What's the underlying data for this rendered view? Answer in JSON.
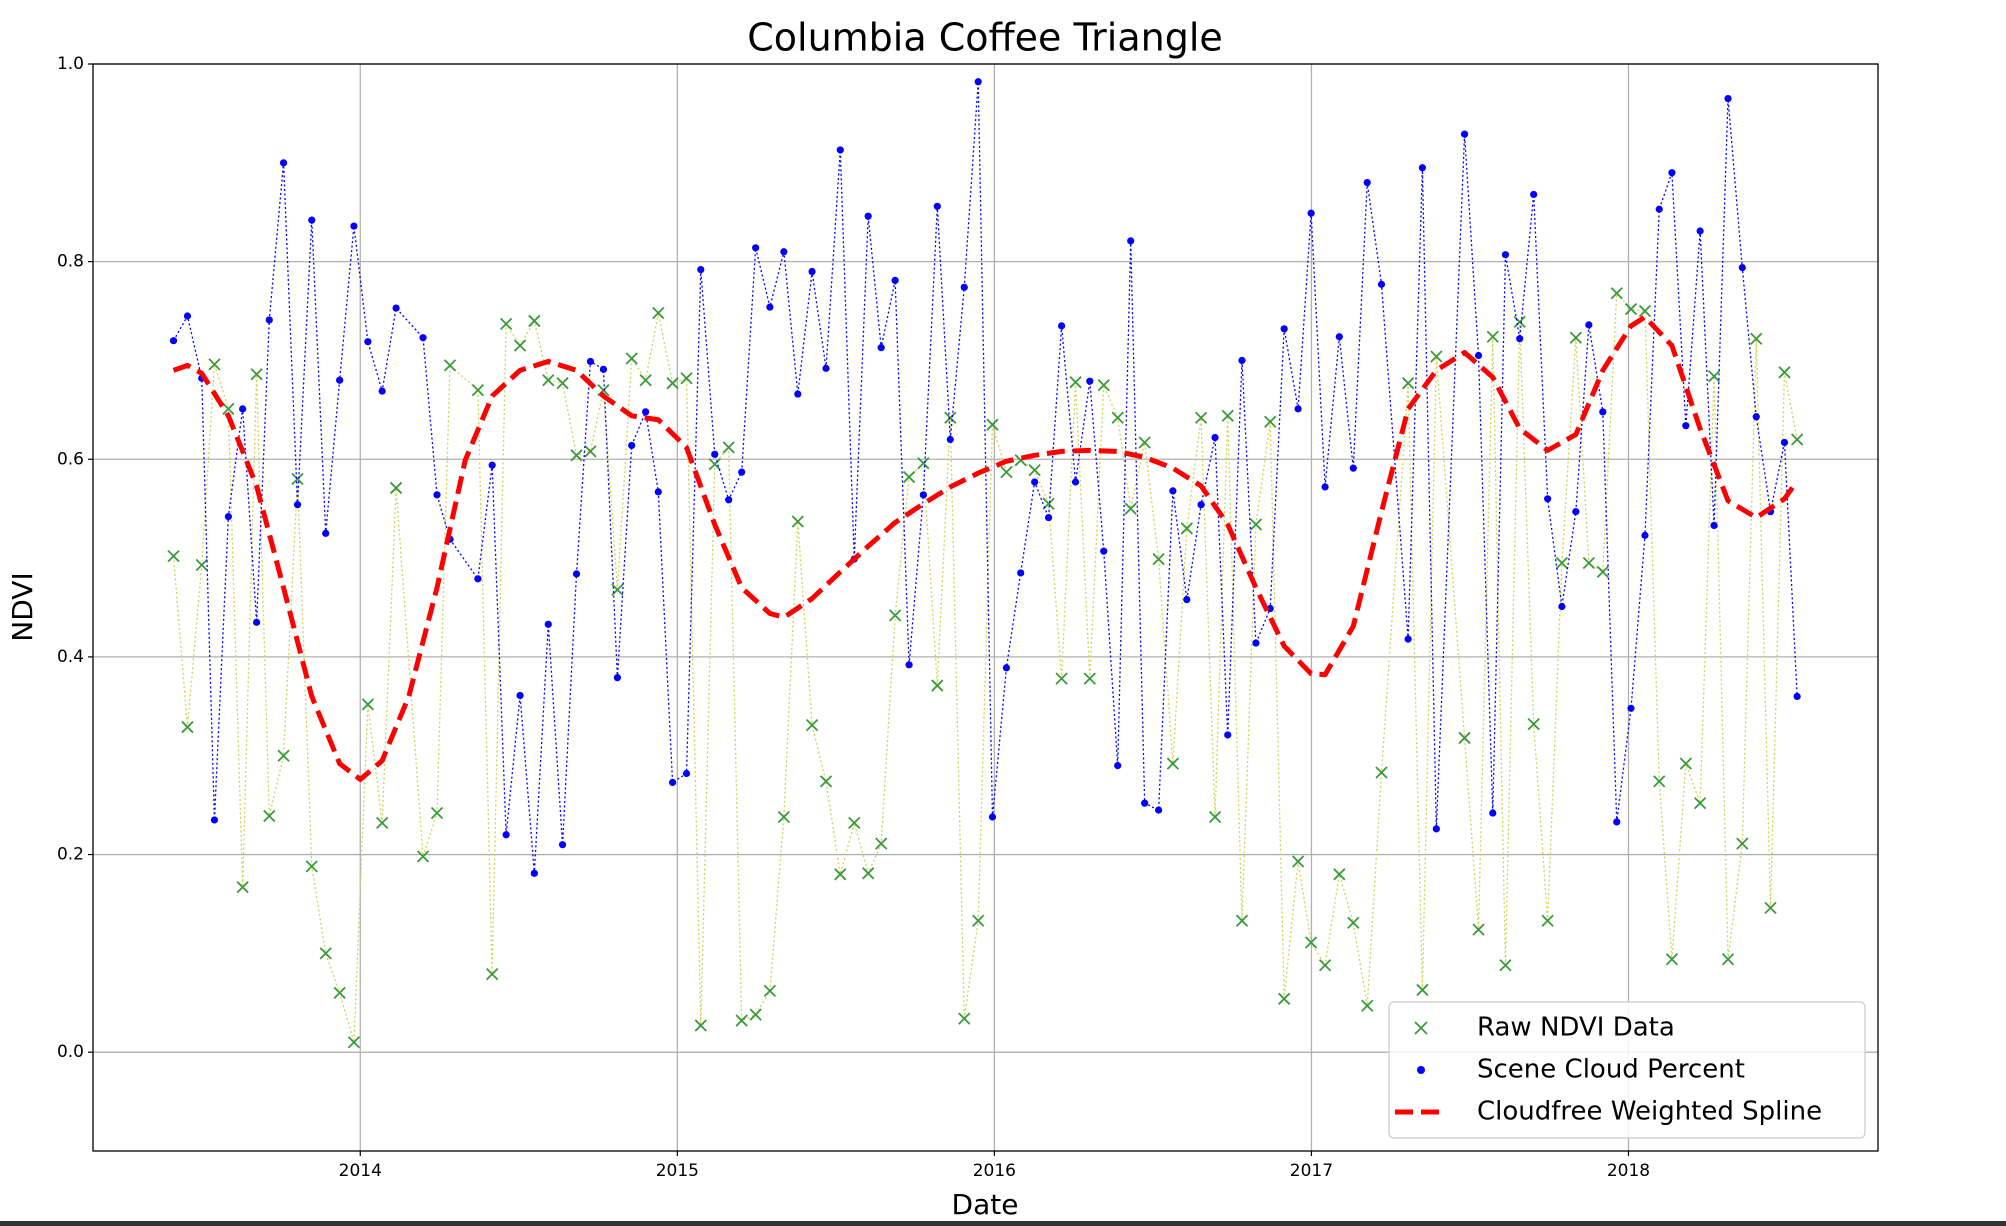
{
  "chart_data": {
    "type": "line",
    "title": "Columbia Coffee Triangle",
    "x_label": "Date",
    "y_label": "NDVI",
    "xlim": [
      2013.157,
      2018.787
    ],
    "ylim": [
      -0.1,
      1.0
    ],
    "xticks": [
      2014,
      2015,
      2016,
      2017,
      2018
    ],
    "yticks": [
      {
        "value": 0,
        "label": "0.0"
      },
      0.2,
      0.4,
      0.6,
      0.8,
      {
        "value": 1,
        "label": "1.0"
      }
    ],
    "grid": true,
    "legend": "lower right",
    "series": [
      {
        "name": "Raw NDVI Data",
        "color": "#3a9a3a",
        "line_color": "#d2d25a",
        "marker": "x",
        "x": [
          2013.411,
          2013.455,
          2013.5,
          2013.54,
          2013.584,
          2013.629,
          2013.673,
          2013.713,
          2013.758,
          2013.802,
          2013.847,
          2013.891,
          2013.935,
          2013.98,
          2014.024,
          2014.069,
          2014.113,
          2014.198,
          2014.242,
          2014.283,
          2014.371,
          2014.416,
          2014.46,
          2014.504,
          2014.549,
          2014.593,
          2014.638,
          2014.682,
          2014.726,
          2014.767,
          2014.811,
          2014.856,
          2014.9,
          2014.94,
          2014.985,
          2015.029,
          2015.074,
          2015.118,
          2015.162,
          2015.203,
          2015.247,
          2015.292,
          2015.336,
          2015.38,
          2015.425,
          2015.469,
          2015.514,
          2015.558,
          2015.602,
          2015.643,
          2015.687,
          2015.731,
          2015.776,
          2015.82,
          2015.861,
          2015.905,
          2015.949,
          2015.994,
          2016.038,
          2016.083,
          2016.127,
          2016.171,
          2016.212,
          2016.256,
          2016.301,
          2016.345,
          2016.389,
          2016.43,
          2016.474,
          2016.518,
          2016.563,
          2016.607,
          2016.652,
          2016.696,
          2016.736,
          2016.781,
          2016.825,
          2016.87,
          2016.914,
          2016.958,
          2016.999,
          2017.043,
          2017.088,
          2017.132,
          2017.176,
          2017.221,
          2017.305,
          2017.35,
          2017.394,
          2017.483,
          2017.527,
          2017.572,
          2017.612,
          2017.657,
          2017.701,
          2017.745,
          2017.79,
          2017.834,
          2017.875,
          2017.919,
          2017.963,
          2018.008,
          2018.052,
          2018.097,
          2018.137,
          2018.181,
          2018.226,
          2018.27,
          2018.314,
          2018.359,
          2018.403,
          2018.448,
          2018.492,
          2018.532
        ],
        "values": [
          0.502,
          0.329,
          0.493,
          0.696,
          0.651,
          0.167,
          0.686,
          0.239,
          0.3,
          0.58,
          0.188,
          0.1,
          0.06,
          0.01,
          0.352,
          0.232,
          0.571,
          0.198,
          0.242,
          0.695,
          0.67,
          0.079,
          0.737,
          0.715,
          0.74,
          0.68,
          0.677,
          0.604,
          0.608,
          0.67,
          0.468,
          0.702,
          0.68,
          0.748,
          0.677,
          0.682,
          0.027,
          0.595,
          0.612,
          0.032,
          0.038,
          0.062,
          0.238,
          0.537,
          0.331,
          0.274,
          0.18,
          0.232,
          0.181,
          0.211,
          0.442,
          0.582,
          0.596,
          0.371,
          0.642,
          0.034,
          0.133,
          0.635,
          0.587,
          0.599,
          0.589,
          0.555,
          0.378,
          0.678,
          0.378,
          0.675,
          0.642,
          0.55,
          0.617,
          0.499,
          0.292,
          0.53,
          0.642,
          0.238,
          0.644,
          0.133,
          0.534,
          0.638,
          0.054,
          0.193,
          0.111,
          0.088,
          0.18,
          0.131,
          0.047,
          0.283,
          0.677,
          0.063,
          0.704,
          0.318,
          0.124,
          0.724,
          0.088,
          0.739,
          0.332,
          0.133,
          0.495,
          0.723,
          0.495,
          0.486,
          0.768,
          0.752,
          0.75,
          0.274,
          0.094,
          0.292,
          0.252,
          0.684,
          0.094,
          0.211,
          0.722,
          0.146,
          0.688,
          0.62
        ]
      },
      {
        "name": "Scene Cloud Percent",
        "color": "#0000ff",
        "line_color": "#0000ff",
        "marker": "dot",
        "x": [
          2013.411,
          2013.455,
          2013.5,
          2013.54,
          2013.584,
          2013.629,
          2013.673,
          2013.713,
          2013.758,
          2013.802,
          2013.847,
          2013.891,
          2013.935,
          2013.98,
          2014.024,
          2014.069,
          2014.113,
          2014.198,
          2014.242,
          2014.283,
          2014.371,
          2014.416,
          2014.46,
          2014.504,
          2014.549,
          2014.593,
          2014.638,
          2014.682,
          2014.726,
          2014.767,
          2014.811,
          2014.856,
          2014.9,
          2014.94,
          2014.985,
          2015.029,
          2015.074,
          2015.118,
          2015.162,
          2015.203,
          2015.247,
          2015.292,
          2015.336,
          2015.38,
          2015.425,
          2015.469,
          2015.514,
          2015.558,
          2015.602,
          2015.643,
          2015.687,
          2015.731,
          2015.776,
          2015.82,
          2015.861,
          2015.905,
          2015.949,
          2015.994,
          2016.038,
          2016.083,
          2016.127,
          2016.171,
          2016.212,
          2016.256,
          2016.301,
          2016.345,
          2016.389,
          2016.43,
          2016.474,
          2016.518,
          2016.563,
          2016.607,
          2016.652,
          2016.696,
          2016.736,
          2016.781,
          2016.825,
          2016.87,
          2016.914,
          2016.958,
          2016.999,
          2017.043,
          2017.088,
          2017.132,
          2017.176,
          2017.221,
          2017.305,
          2017.35,
          2017.394,
          2017.483,
          2017.527,
          2017.572,
          2017.612,
          2017.657,
          2017.701,
          2017.745,
          2017.79,
          2017.834,
          2017.875,
          2017.919,
          2017.963,
          2018.008,
          2018.052,
          2018.097,
          2018.137,
          2018.181,
          2018.226,
          2018.27,
          2018.314,
          2018.359,
          2018.403,
          2018.448,
          2018.492,
          2018.532
        ],
        "values": [
          0.72,
          0.745,
          0.682,
          0.235,
          0.542,
          0.651,
          0.435,
          0.741,
          0.9,
          0.554,
          0.842,
          0.525,
          0.68,
          0.836,
          0.719,
          0.669,
          0.753,
          0.723,
          0.564,
          0.519,
          0.479,
          0.594,
          0.22,
          0.361,
          0.181,
          0.433,
          0.21,
          0.484,
          0.699,
          0.691,
          0.379,
          0.614,
          0.648,
          0.567,
          0.273,
          0.282,
          0.792,
          0.605,
          0.559,
          0.587,
          0.814,
          0.754,
          0.81,
          0.666,
          0.79,
          0.692,
          0.913,
          0.499,
          0.846,
          0.713,
          0.781,
          0.392,
          0.564,
          0.856,
          0.62,
          0.774,
          0.982,
          0.238,
          0.389,
          0.485,
          0.577,
          0.541,
          0.735,
          0.577,
          0.679,
          0.507,
          0.29,
          0.821,
          0.252,
          0.245,
          0.568,
          0.458,
          0.554,
          0.622,
          0.321,
          0.7,
          0.414,
          0.449,
          0.732,
          0.651,
          0.849,
          0.572,
          0.724,
          0.591,
          0.88,
          0.777,
          0.418,
          0.895,
          0.226,
          0.929,
          0.705,
          0.242,
          0.807,
          0.722,
          0.868,
          0.56,
          0.451,
          0.547,
          0.736,
          0.648,
          0.233,
          0.348,
          0.523,
          0.853,
          0.89,
          0.634,
          0.831,
          0.533,
          0.965,
          0.794,
          0.643,
          0.547,
          0.617,
          0.36
        ]
      },
      {
        "name": "Cloudfree Weighted Spline",
        "color": "#ff0000",
        "line_color": "#ff0000",
        "marker": "none",
        "dashed": true,
        "x": [
          2013.411,
          2013.455,
          2013.5,
          2013.584,
          2013.673,
          2013.758,
          2013.847,
          2013.935,
          2014,
          2014.069,
          2014.153,
          2014.242,
          2014.331,
          2014.416,
          2014.504,
          2014.593,
          2014.682,
          2014.767,
          2014.856,
          2014.94,
          2015.029,
          2015.118,
          2015.203,
          2015.292,
          2015.336,
          2015.425,
          2015.514,
          2015.602,
          2015.687,
          2015.776,
          2015.861,
          2015.949,
          2016.038,
          2016.127,
          2016.212,
          2016.301,
          2016.389,
          2016.474,
          2016.563,
          2016.652,
          2016.736,
          2016.825,
          2016.914,
          2016.999,
          2017.043,
          2017.132,
          2017.221,
          2017.305,
          2017.394,
          2017.483,
          2017.572,
          2017.657,
          2017.745,
          2017.834,
          2017.919,
          2018.008,
          2018.052,
          2018.137,
          2018.226,
          2018.314,
          2018.403,
          2018.492,
          2018.532
        ],
        "values": [
          0.69,
          0.695,
          0.687,
          0.644,
          0.573,
          0.47,
          0.36,
          0.292,
          0.276,
          0.295,
          0.36,
          0.47,
          0.599,
          0.664,
          0.69,
          0.699,
          0.69,
          0.664,
          0.644,
          0.64,
          0.612,
          0.534,
          0.47,
          0.444,
          0.44,
          0.459,
          0.486,
          0.512,
          0.536,
          0.555,
          0.572,
          0.586,
          0.598,
          0.604,
          0.608,
          0.609,
          0.608,
          0.602,
          0.591,
          0.573,
          0.534,
          0.47,
          0.411,
          0.383,
          0.382,
          0.431,
          0.547,
          0.651,
          0.69,
          0.708,
          0.683,
          0.631,
          0.609,
          0.625,
          0.69,
          0.735,
          0.744,
          0.715,
          0.631,
          0.558,
          0.541,
          0.56,
          0.578
        ]
      }
    ]
  }
}
